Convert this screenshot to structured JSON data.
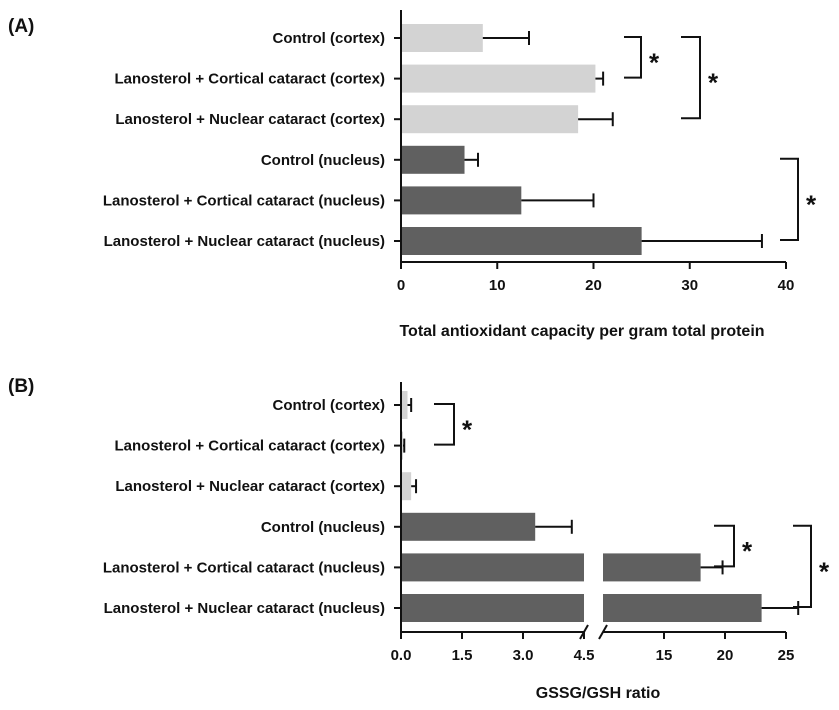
{
  "chart_data": [
    {
      "type": "bar",
      "orientation": "horizontal",
      "panel_label": "(A)",
      "categories": [
        "Control (cortex)",
        "Lanosterol + Cortical cataract (cortex)",
        "Lanosterol + Nuclear cataract (cortex)",
        "Control (nucleus)",
        "Lanosterol + Cortical cataract (nucleus)",
        "Lanosterol + Nuclear cataract (nucleus)"
      ],
      "values": [
        8.5,
        20.2,
        18.4,
        6.6,
        12.5,
        25.0
      ],
      "error": [
        4.8,
        0.8,
        3.6,
        1.4,
        7.5,
        12.5
      ],
      "bar_colors": [
        "#d3d3d3",
        "#d3d3d3",
        "#d3d3d3",
        "#606060",
        "#606060",
        "#606060"
      ],
      "xlabel": "Total antioxidant capacity per gram total protein",
      "xlim": [
        0,
        40
      ],
      "xticks": [
        "0",
        "10",
        "20",
        "30",
        "40"
      ],
      "significance": [
        {
          "from": 0,
          "to": 1,
          "label": "*"
        },
        {
          "from": 0,
          "to": 2,
          "label": "*"
        },
        {
          "from": 3,
          "to": 5,
          "label": "*"
        }
      ]
    },
    {
      "type": "bar",
      "orientation": "horizontal",
      "panel_label": "(B)",
      "categories": [
        "Control (cortex)",
        "Lanosterol + Cortical cataract (cortex)",
        "Lanosterol + Nuclear cataract (cortex)",
        "Control (nucleus)",
        "Lanosterol + Cortical cataract (nucleus)",
        "Lanosterol + Nuclear cataract (nucleus)"
      ],
      "values": [
        0.16,
        0.03,
        0.25,
        3.3,
        18.0,
        23.0
      ],
      "error": [
        0.09,
        0.05,
        0.12,
        0.9,
        1.8,
        3.0
      ],
      "bar_colors": [
        "#d3d3d3",
        "#d3d3d3",
        "#d3d3d3",
        "#606060",
        "#606060",
        "#606060"
      ],
      "xlabel": "GSSG/GSH ratio",
      "axis_break": {
        "lower": [
          0,
          4.5
        ],
        "upper": [
          10,
          25
        ]
      },
      "xticks_lower": [
        "0.0",
        "1.5",
        "3.0",
        "4.5"
      ],
      "xticks_upper": [
        "15",
        "20",
        "25"
      ],
      "significance": [
        {
          "from": 0,
          "to": 1,
          "label": "*"
        },
        {
          "from": 3,
          "to": 4,
          "label": "*"
        },
        {
          "from": 3,
          "to": 5,
          "label": "*"
        }
      ]
    }
  ]
}
